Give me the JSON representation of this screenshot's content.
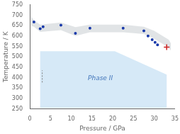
{
  "chart_data": {
    "type": "scatter",
    "xlabel": "Pressure / GPa",
    "ylabel": "Temperature / K",
    "xlim": [
      0,
      35
    ],
    "ylim": [
      250,
      750
    ],
    "xticks": [
      0,
      5,
      10,
      15,
      20,
      25,
      30,
      35
    ],
    "yticks": [
      250,
      300,
      350,
      400,
      450,
      500,
      550,
      600,
      650,
      700,
      750
    ],
    "grid": false,
    "series": [
      {
        "color": "#1a3aaa",
        "marker": "circle",
        "x": [
          1.0,
          2.5,
          3.2,
          7.5,
          11.0,
          14.5,
          22.5,
          27.5,
          28.5,
          29.5,
          30.2,
          30.8
        ],
        "values": [
          668,
          635,
          645,
          652,
          613,
          638,
          638,
          625,
          600,
          582,
          570,
          558
        ]
      },
      {
        "color": "#cc2222",
        "marker": "cross",
        "x": [
          33.0
        ],
        "values": [
          547
        ]
      }
    ],
    "areas": [
      {
        "color": "#cce4f5",
        "points": [
          [
            2.5,
            255
          ],
          [
            2.5,
            527
          ],
          [
            20.5,
            527
          ],
          [
            33.0,
            415
          ],
          [
            33.0,
            255
          ]
        ]
      },
      {
        "color": "#c8cdd2",
        "upper": [
          [
            0.3,
            695
          ],
          [
            1.0,
            675
          ],
          [
            2.5,
            655
          ],
          [
            7.5,
            665
          ],
          [
            11.0,
            643
          ],
          [
            14.5,
            655
          ],
          [
            22.5,
            655
          ],
          [
            27.5,
            645
          ],
          [
            30.0,
            625
          ],
          [
            33.5,
            582
          ],
          [
            34.0,
            565
          ]
        ],
        "lower": [
          [
            0.3,
            650
          ],
          [
            1.0,
            645
          ],
          [
            2.5,
            620
          ],
          [
            7.5,
            628
          ],
          [
            11.0,
            600
          ],
          [
            14.5,
            618
          ],
          [
            22.5,
            618
          ],
          [
            27.5,
            610
          ],
          [
            30.0,
            587
          ],
          [
            33.5,
            545
          ],
          [
            34.0,
            530
          ]
        ]
      }
    ],
    "lines": [
      {
        "color": "#808080",
        "line_style": "dotted",
        "x": [
          3.0,
          3.0
        ],
        "values": [
          377,
          435
        ]
      }
    ],
    "annotations": [
      {
        "text": "Phase II",
        "x": 14,
        "y": 395,
        "color": "#4477bb"
      }
    ]
  }
}
